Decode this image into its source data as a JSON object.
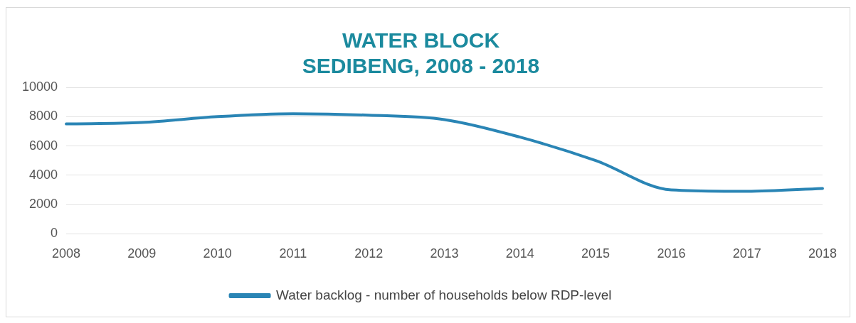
{
  "chart_data": {
    "type": "line",
    "title": [
      "WATER BLOCK",
      "SEDIBENG, 2008 - 2018"
    ],
    "categories": [
      "2008",
      "2009",
      "2010",
      "2011",
      "2012",
      "2013",
      "2014",
      "2015",
      "2016",
      "2017",
      "2018"
    ],
    "series": [
      {
        "name": "Water backlog - number of households below RDP-level",
        "color": "#2a85b5",
        "values": [
          7500,
          7600,
          8000,
          8200,
          8100,
          7800,
          6600,
          5000,
          3000,
          2900,
          3100
        ]
      }
    ],
    "ylim": [
      0,
      10000
    ],
    "yticks": [
      0,
      2000,
      4000,
      6000,
      8000,
      10000
    ],
    "grid": "y",
    "legend": "bottom",
    "marker": "none",
    "line_style": "solid"
  }
}
